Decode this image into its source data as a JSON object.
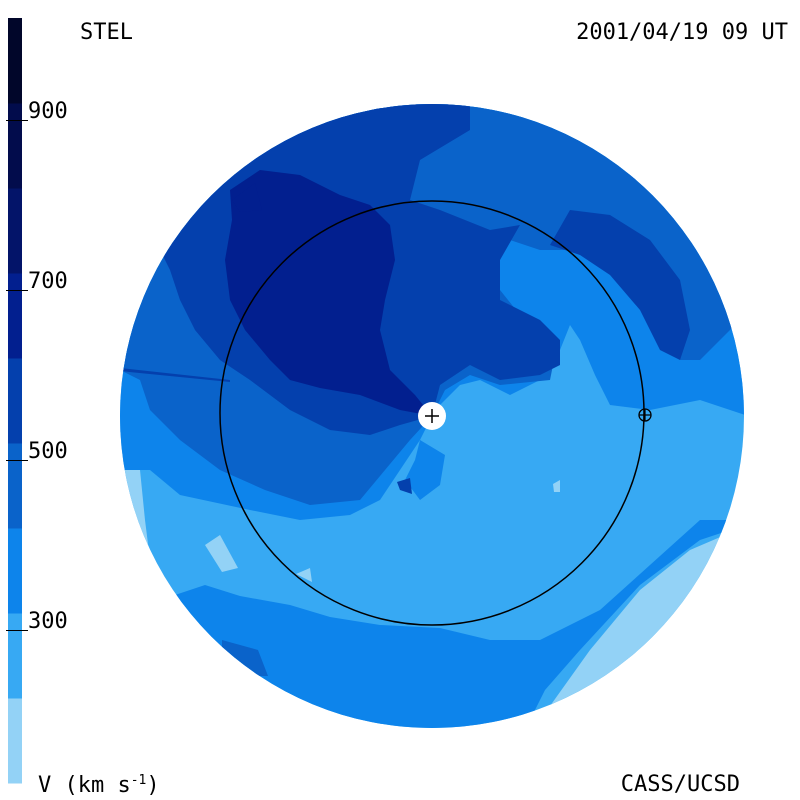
{
  "header": {
    "instrument": "STEL",
    "timestamp": "2001/04/19 09 UT"
  },
  "footer": {
    "credit": "CASS/UCSD",
    "unit_base": "V (km s",
    "unit_exp": "-1",
    "unit_close": ")"
  },
  "colorbar": {
    "ticks": [
      {
        "value": 900,
        "label": "900"
      },
      {
        "value": 700,
        "label": "700"
      },
      {
        "value": 500,
        "label": "500"
      },
      {
        "value": 300,
        "label": "300"
      }
    ],
    "min": 100,
    "max": 1000,
    "bands": [
      {
        "from": 100,
        "to": 200,
        "color": "#93d2f6"
      },
      {
        "from": 200,
        "to": 300,
        "color": "#37a9f3"
      },
      {
        "from": 300,
        "to": 400,
        "color": "#0d84eb"
      },
      {
        "from": 400,
        "to": 500,
        "color": "#0a63ca"
      },
      {
        "from": 500,
        "to": 600,
        "color": "#0440ad"
      },
      {
        "from": 600,
        "to": 700,
        "color": "#021f8f"
      },
      {
        "from": 700,
        "to": 800,
        "color": "#031469"
      },
      {
        "from": 800,
        "to": 900,
        "color": "#020c4c"
      },
      {
        "from": 900,
        "to": 1000,
        "color": "#01062a"
      }
    ]
  },
  "colors": {
    "v_200": "#93d2f6",
    "v_300": "#37a9f3",
    "v_400": "#0d84eb",
    "v_500": "#0a63ca",
    "v_600": "#0440ad",
    "v_700": "#021f8f",
    "sun_marker": "#ffffff",
    "orbit_line": "#000000"
  },
  "markers": {
    "sun": "sun-plus-icon",
    "earth": "earth-circle-plus-icon"
  }
}
